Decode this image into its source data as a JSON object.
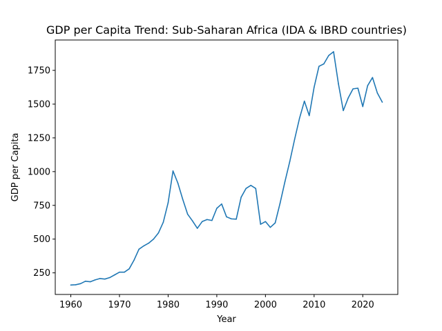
{
  "chart_data": {
    "type": "line",
    "title": "GDP per Capita Trend: Sub-Saharan Africa (IDA & IBRD countries)",
    "xlabel": "Year",
    "ylabel": "GDP per Capita",
    "xlim": [
      1956.8,
      2027.2
    ],
    "ylim": [
      90,
      1975
    ],
    "xticks": [
      1960,
      1970,
      1980,
      1990,
      2000,
      2010,
      2020
    ],
    "yticks": [
      250,
      500,
      750,
      1000,
      1250,
      1500,
      1750
    ],
    "grid": false,
    "line_color": "#1f77b4",
    "series": [
      {
        "x": [
          1960,
          1961,
          1962,
          1963,
          1964,
          1965,
          1966,
          1967,
          1968,
          1969,
          1970,
          1971,
          1972,
          1973,
          1974,
          1975,
          1976,
          1977,
          1978,
          1979,
          1980,
          1981,
          1982,
          1983,
          1984,
          1985,
          1986,
          1987,
          1988,
          1989,
          1990,
          1991,
          1992,
          1993,
          1994,
          1995,
          1996,
          1997,
          1998,
          1999,
          2000,
          2001,
          2002,
          2003,
          2004,
          2005,
          2006,
          2007,
          2008,
          2009,
          2010,
          2011,
          2012,
          2013,
          2014,
          2015,
          2016,
          2017,
          2018,
          2019,
          2020,
          2021,
          2022,
          2023,
          2024
        ],
        "values": [
          160,
          162,
          170,
          188,
          184,
          198,
          208,
          204,
          215,
          235,
          255,
          255,
          280,
          345,
          425,
          450,
          470,
          500,
          545,
          625,
          770,
          1005,
          915,
          795,
          685,
          635,
          580,
          630,
          645,
          638,
          728,
          760,
          665,
          650,
          648,
          810,
          875,
          898,
          875,
          610,
          630,
          587,
          620,
          765,
          925,
          1075,
          1240,
          1395,
          1522,
          1415,
          1625,
          1780,
          1798,
          1860,
          1888,
          1650,
          1452,
          1545,
          1613,
          1618,
          1482,
          1637,
          1697,
          1582,
          1515
        ]
      }
    ]
  }
}
